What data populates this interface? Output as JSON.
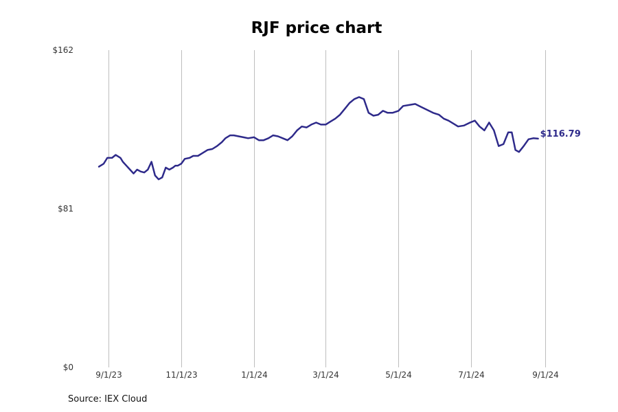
{
  "chart_data": {
    "type": "line",
    "title": "RJF price chart",
    "source": "Source: IEX Cloud",
    "xlabel": "",
    "ylabel": "",
    "ylim": [
      0,
      162
    ],
    "y_ticks": [
      {
        "value": 0,
        "label": "$0"
      },
      {
        "value": 81,
        "label": "$81"
      },
      {
        "value": 162,
        "label": "$162"
      }
    ],
    "x_ticks": [
      {
        "date": "2023-09-01",
        "label": "9/1/23"
      },
      {
        "date": "2023-11-01",
        "label": "11/1/23"
      },
      {
        "date": "2024-01-01",
        "label": "1/1/24"
      },
      {
        "date": "2024-03-01",
        "label": "3/1/24"
      },
      {
        "date": "2024-05-01",
        "label": "5/1/24"
      },
      {
        "date": "2024-07-01",
        "label": "7/1/24"
      },
      {
        "date": "2024-09-01",
        "label": "9/1/24"
      }
    ],
    "grid": {
      "vertical": true,
      "horizontal": false
    },
    "series_color": "#2e2a8a",
    "last_value_label": "$116.79",
    "series": [
      {
        "x": [
          "2023-08-24",
          "2023-08-28",
          "2023-08-31",
          "2023-09-04",
          "2023-09-07",
          "2023-09-11",
          "2023-09-13",
          "2023-09-16",
          "2023-09-19",
          "2023-09-22",
          "2023-09-25",
          "2023-09-28",
          "2023-10-01",
          "2023-10-04",
          "2023-10-07",
          "2023-10-10",
          "2023-10-13",
          "2023-10-16",
          "2023-10-19",
          "2023-10-22",
          "2023-10-25",
          "2023-10-27",
          "2023-10-29",
          "2023-11-01",
          "2023-11-04",
          "2023-11-08",
          "2023-11-11",
          "2023-11-15",
          "2023-11-19",
          "2023-11-23",
          "2023-11-27",
          "2023-12-01",
          "2023-12-05",
          "2023-12-08",
          "2023-12-12",
          "2023-12-15",
          "2023-12-19",
          "2023-12-23",
          "2023-12-27",
          "2024-01-01",
          "2024-01-05",
          "2024-01-09",
          "2024-01-13",
          "2024-01-17",
          "2024-01-21",
          "2024-01-25",
          "2024-01-29",
          "2024-02-02",
          "2024-02-06",
          "2024-02-10",
          "2024-02-14",
          "2024-02-18",
          "2024-02-22",
          "2024-02-26",
          "2024-03-01",
          "2024-03-05",
          "2024-03-09",
          "2024-03-13",
          "2024-03-17",
          "2024-03-21",
          "2024-03-25",
          "2024-03-29",
          "2024-04-02",
          "2024-04-06",
          "2024-04-10",
          "2024-04-14",
          "2024-04-18",
          "2024-04-22",
          "2024-04-26",
          "2024-05-01",
          "2024-05-05",
          "2024-05-10",
          "2024-05-15",
          "2024-05-20",
          "2024-05-25",
          "2024-05-30",
          "2024-06-04",
          "2024-06-08",
          "2024-06-12",
          "2024-06-16",
          "2024-06-20",
          "2024-06-25",
          "2024-06-30",
          "2024-07-04",
          "2024-07-08",
          "2024-07-12",
          "2024-07-16",
          "2024-07-20",
          "2024-07-24",
          "2024-07-28",
          "2024-08-01",
          "2024-08-04",
          "2024-08-07",
          "2024-08-10",
          "2024-08-14",
          "2024-08-18",
          "2024-08-22",
          "2024-08-26"
        ],
        "values": [
          102.5,
          104,
          107,
          107,
          108.5,
          107,
          105,
          103,
          101,
          99,
          101,
          100,
          99.5,
          101,
          105,
          98,
          96,
          97,
          102,
          101,
          102,
          103,
          103,
          104,
          106.5,
          107,
          108,
          108,
          109.5,
          111,
          111.5,
          113,
          115,
          117,
          118.5,
          118.5,
          118,
          117.5,
          117,
          117.5,
          116,
          116,
          117,
          118.5,
          118,
          117,
          116,
          118,
          121,
          123,
          122.5,
          124,
          125,
          124,
          124,
          125.5,
          127,
          129,
          132,
          135,
          137,
          138,
          137,
          130,
          128.5,
          129,
          131,
          130,
          130,
          131,
          133.5,
          134,
          134.5,
          133,
          131.5,
          130,
          129,
          127,
          126,
          124.5,
          123,
          123.5,
          125,
          126,
          123,
          121,
          125,
          121,
          113,
          114,
          120,
          120,
          111,
          110,
          113,
          116.5,
          117,
          116.79
        ]
      }
    ]
  }
}
